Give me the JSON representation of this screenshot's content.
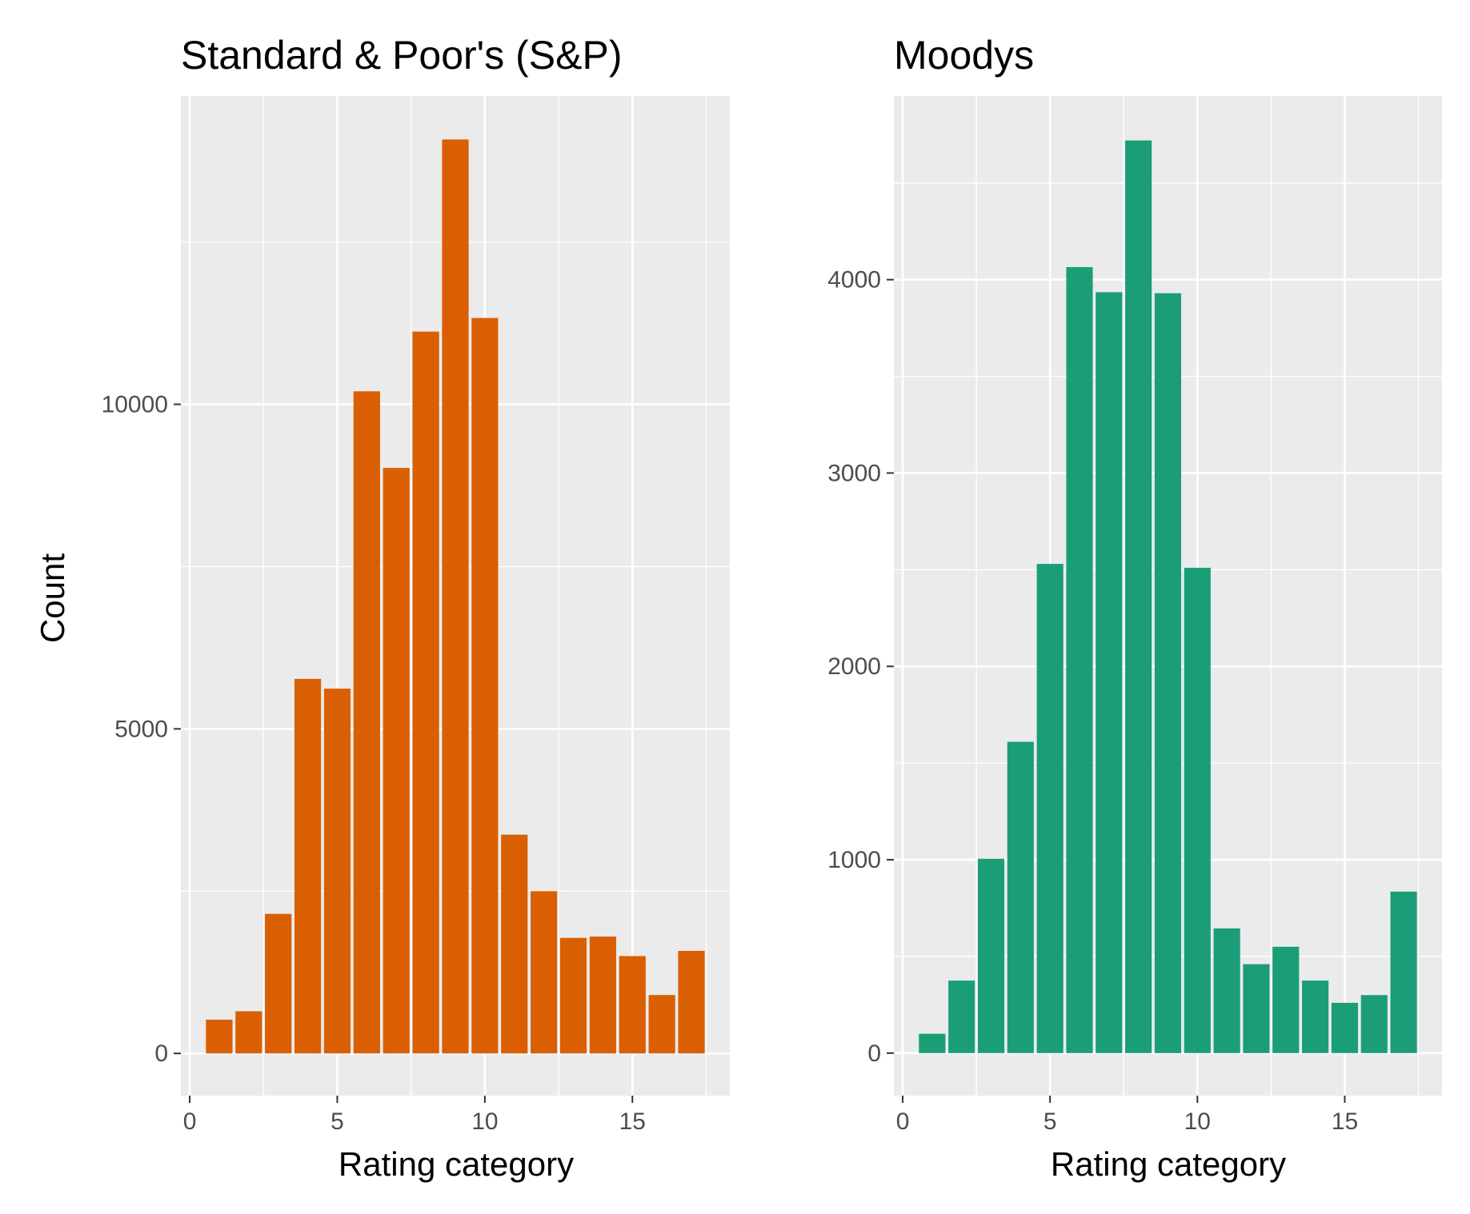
{
  "chart_data": [
    {
      "type": "bar",
      "title": "Standard & Poor's (S&P)",
      "xlabel": "Rating category",
      "ylabel": "Count",
      "x": [
        1,
        2,
        3,
        4,
        5,
        6,
        7,
        8,
        9,
        10,
        11,
        12,
        13,
        14,
        15,
        16,
        17
      ],
      "values": [
        520,
        650,
        2150,
        5770,
        5620,
        10200,
        9020,
        11120,
        14080,
        11330,
        3370,
        2500,
        1780,
        1800,
        1500,
        900,
        1580
      ],
      "xlim": [
        -0.3,
        18.3
      ],
      "ylim": [
        -650,
        14750
      ],
      "x_ticks": [
        0,
        5,
        10,
        15
      ],
      "x_tick_labels": [
        "0",
        "5",
        "10",
        "15"
      ],
      "y_ticks": [
        0,
        5000,
        10000
      ],
      "y_tick_labels": [
        "0",
        "5000",
        "10000"
      ],
      "bar_color": "#D95F02",
      "panel_background": "#EBEBEB",
      "grid": true
    },
    {
      "type": "bar",
      "title": "Moodys",
      "xlabel": "Rating category",
      "ylabel": "",
      "x": [
        1,
        2,
        3,
        4,
        5,
        6,
        7,
        8,
        9,
        10,
        11,
        12,
        13,
        14,
        15,
        16,
        17
      ],
      "values": [
        100,
        375,
        1005,
        1610,
        2530,
        4065,
        3935,
        4720,
        3930,
        2510,
        645,
        460,
        550,
        375,
        260,
        300,
        835
      ],
      "xlim": [
        -0.3,
        18.3
      ],
      "ylim": [
        -220,
        4950
      ],
      "x_ticks": [
        0,
        5,
        10,
        15
      ],
      "x_tick_labels": [
        "0",
        "5",
        "10",
        "15"
      ],
      "y_ticks": [
        0,
        1000,
        2000,
        3000,
        4000
      ],
      "y_tick_labels": [
        "0",
        "1000",
        "2000",
        "3000",
        "4000"
      ],
      "bar_color": "#1B9E77",
      "panel_background": "#EBEBEB",
      "grid": true
    }
  ]
}
